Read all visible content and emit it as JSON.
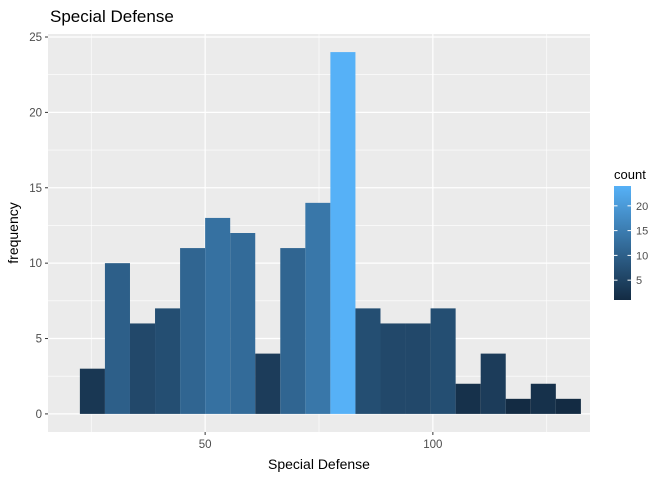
{
  "chart_data": {
    "type": "bar",
    "title": "Special Defense",
    "xlabel": "Special Defense",
    "ylabel": "frequency",
    "xlim": [
      15.5,
      134.5
    ],
    "ylim": [
      -1.2,
      25.2
    ],
    "bin_width": 5.5,
    "first_bin_start": 22.5,
    "values": [
      3,
      10,
      6,
      7,
      11,
      13,
      12,
      4,
      11,
      14,
      24,
      7,
      6,
      6,
      7,
      2,
      4,
      1,
      2,
      1
    ],
    "x_ticks": [
      50,
      100
    ],
    "x_tick_labels": [
      "50",
      "100"
    ],
    "x_minor_ticks": [
      25,
      75,
      125
    ],
    "y_ticks": [
      0,
      5,
      10,
      15,
      20,
      25
    ],
    "y_tick_labels": [
      "0",
      "5",
      "10",
      "15",
      "20",
      "25"
    ],
    "grid": true,
    "legend": {
      "title": "count",
      "position": "right",
      "min": 1,
      "max": 24,
      "ticks": [
        5,
        10,
        15,
        20
      ],
      "tick_labels": [
        "5",
        "10",
        "15",
        "20"
      ]
    },
    "colors": {
      "low": "#132B43",
      "high": "#56B1F7",
      "panel": "#EBEBEB",
      "grid": "#FFFFFF"
    }
  }
}
